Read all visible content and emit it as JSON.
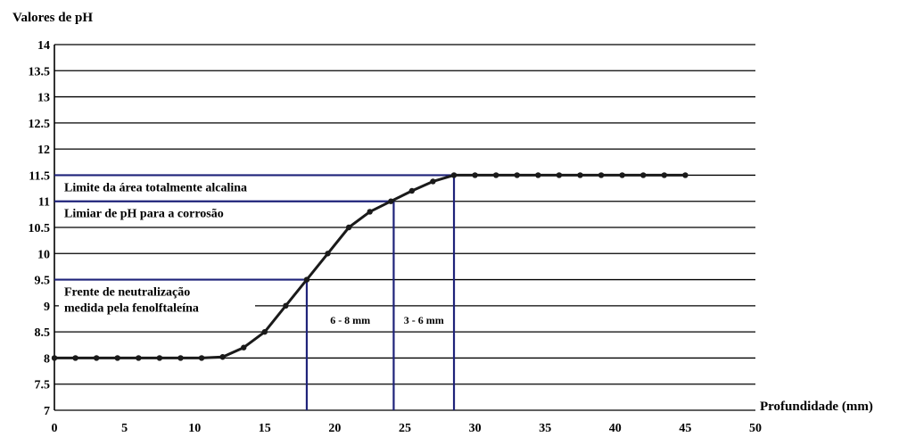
{
  "chart_data": {
    "type": "line",
    "title": "Valores de pH",
    "xlabel": "Profundidade (mm)",
    "xlim": [
      0,
      50
    ],
    "ylim": [
      7,
      14
    ],
    "x_ticks": [
      "0",
      "5",
      "10",
      "15",
      "20",
      "25",
      "30",
      "35",
      "40",
      "45",
      "50"
    ],
    "y_ticks": [
      "7",
      "7.5",
      "8",
      "8.5",
      "9",
      "9.5",
      "10",
      "10.5",
      "11",
      "11.5",
      "12",
      "12.5",
      "13",
      "13.5",
      "14"
    ],
    "grid": "horizontal",
    "series": [
      {
        "x": [
          0,
          1.5,
          3,
          4.5,
          6,
          7.5,
          9,
          10.5,
          12,
          13.5,
          15,
          16.5,
          18,
          19.5,
          21,
          22.5,
          24,
          25.5,
          27,
          28.5,
          30,
          31.5,
          33,
          34.5,
          36,
          37.5,
          39,
          40.5,
          42,
          43.5,
          45
        ],
        "y": [
          8,
          8,
          8,
          8,
          8,
          8,
          8,
          8,
          8.02,
          8.2,
          8.5,
          9.0,
          9.5,
          10.0,
          10.5,
          10.8,
          11.0,
          11.2,
          11.38,
          11.5,
          11.5,
          11.5,
          11.5,
          11.5,
          11.5,
          11.5,
          11.5,
          11.5,
          11.5,
          11.5,
          11.5
        ]
      }
    ],
    "reference_lines": [
      {
        "y": 11.5,
        "x_end": 28.5,
        "label": "Limite da área totalmente alcalina"
      },
      {
        "y": 11.0,
        "x_end": 24.2,
        "label": "Limiar de pH para a corrosão"
      },
      {
        "y": 9.5,
        "x_end": 18.0,
        "label_lines": [
          "Frente de neutralização",
          "medida pela fenolftaleína"
        ]
      }
    ],
    "interval_labels": [
      {
        "x_from": 18.0,
        "x_to": 24.2,
        "text": "6 - 8 mm"
      },
      {
        "x_from": 24.2,
        "x_to": 28.5,
        "text": "3 - 6 mm"
      }
    ],
    "colors": {
      "curve": "#1a1a1a",
      "reference": "#1f237a",
      "grid": "#000000"
    }
  }
}
